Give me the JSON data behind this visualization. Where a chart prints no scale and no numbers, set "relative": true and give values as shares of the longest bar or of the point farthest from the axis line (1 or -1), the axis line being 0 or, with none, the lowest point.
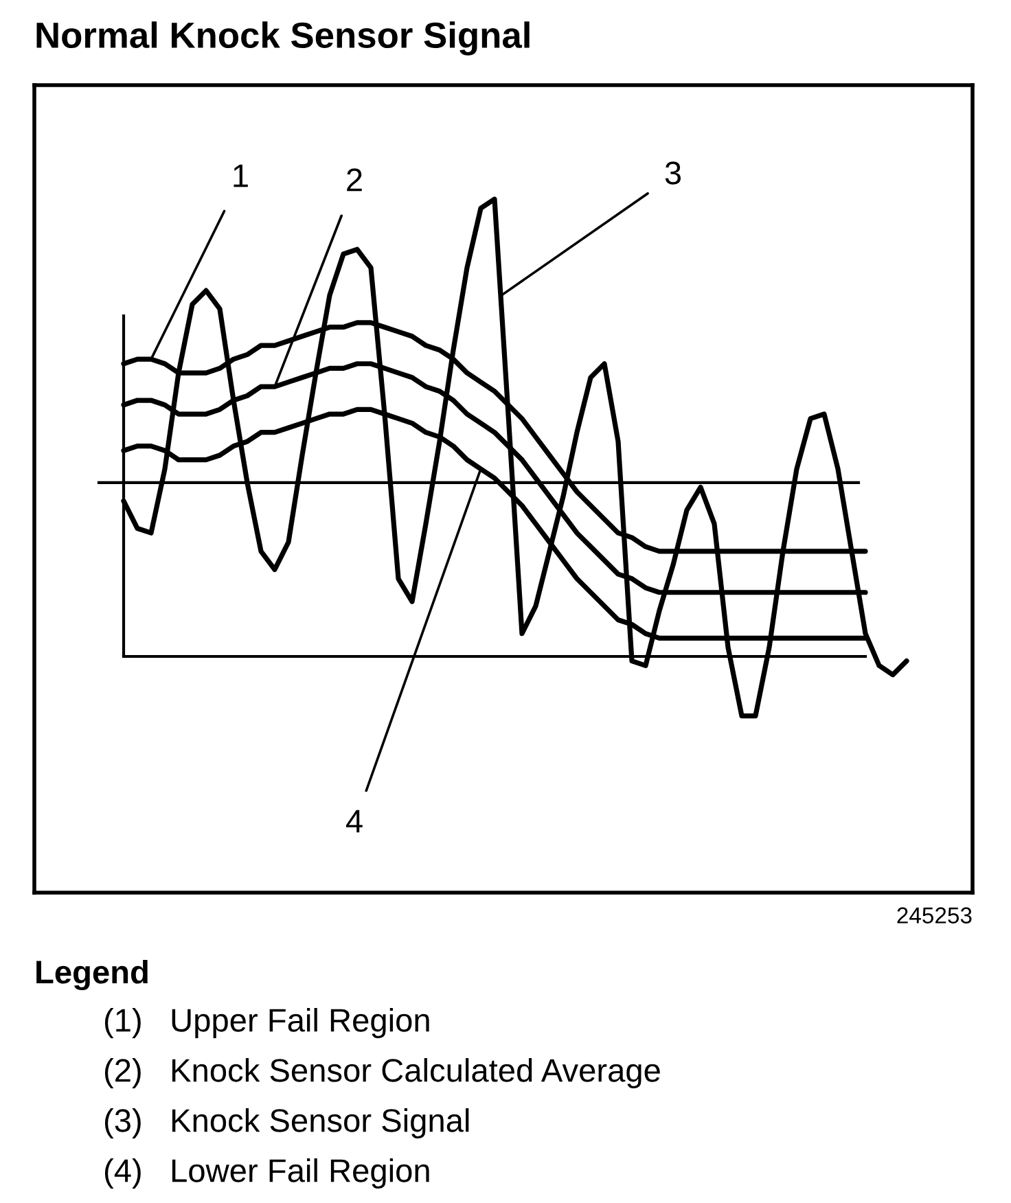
{
  "chart_data": {
    "type": "line",
    "relative": true,
    "title": "Normal Knock Sensor Signal",
    "categories": [
      null,
      null,
      null,
      null,
      null,
      null,
      null,
      null,
      null,
      null,
      null,
      null,
      null,
      null,
      null,
      null,
      null,
      null,
      null,
      null,
      null,
      null,
      null,
      null,
      null,
      null,
      null,
      null,
      null,
      null,
      null,
      null,
      null,
      null,
      null,
      null,
      null,
      null,
      null,
      null,
      null,
      null,
      null,
      null,
      null,
      null,
      null,
      null,
      null,
      null,
      null,
      null,
      null,
      null,
      null,
      null,
      null,
      null
    ],
    "series": [
      {
        "name": "1",
        "color": "#000000",
        "values": [
          0.64,
          0.65,
          0.65,
          0.64,
          0.62,
          0.62,
          0.62,
          0.63,
          0.65,
          0.66,
          0.68,
          0.68,
          0.69,
          0.7,
          0.71,
          0.72,
          0.72,
          0.73,
          0.73,
          0.72,
          0.71,
          0.7,
          0.68,
          0.67,
          0.65,
          0.62,
          0.6,
          0.58,
          0.55,
          0.52,
          0.48,
          0.44,
          0.4,
          0.36,
          0.33,
          0.3,
          0.27,
          0.26,
          0.24,
          0.23,
          0.23,
          0.23,
          0.23,
          0.23,
          0.23,
          0.23,
          0.23,
          0.23,
          0.23,
          0.23,
          0.23,
          0.23,
          0.23,
          0.23,
          0.23,
          null,
          null,
          null
        ]
      },
      {
        "name": "2",
        "color": "#000000",
        "values": [
          0.55,
          0.56,
          0.56,
          0.55,
          0.53,
          0.53,
          0.53,
          0.54,
          0.56,
          0.57,
          0.59,
          0.59,
          0.6,
          0.61,
          0.62,
          0.63,
          0.63,
          0.64,
          0.64,
          0.63,
          0.62,
          0.61,
          0.59,
          0.58,
          0.56,
          0.53,
          0.51,
          0.49,
          0.46,
          0.43,
          0.39,
          0.35,
          0.31,
          0.27,
          0.24,
          0.21,
          0.18,
          0.17,
          0.15,
          0.14,
          0.14,
          0.14,
          0.14,
          0.14,
          0.14,
          0.14,
          0.14,
          0.14,
          0.14,
          0.14,
          0.14,
          0.14,
          0.14,
          0.14,
          0.14,
          null,
          null,
          null
        ]
      },
      {
        "name": "3",
        "color": "#000000",
        "values": [
          0.34,
          0.28,
          0.27,
          0.41,
          0.62,
          0.77,
          0.8,
          0.76,
          0.56,
          0.38,
          0.23,
          0.19,
          0.25,
          0.44,
          0.62,
          0.79,
          0.88,
          0.89,
          0.85,
          0.53,
          0.17,
          0.12,
          0.29,
          0.47,
          0.67,
          0.85,
          0.98,
          1.0,
          0.53,
          0.05,
          0.11,
          0.23,
          0.35,
          0.49,
          0.61,
          0.64,
          0.47,
          -0.01,
          -0.02,
          0.1,
          0.2,
          0.32,
          0.37,
          0.29,
          0.02,
          -0.13,
          -0.13,
          0.02,
          0.23,
          0.41,
          0.52,
          0.53,
          0.41,
          0.23,
          0.05,
          -0.02,
          -0.04,
          -0.01
        ]
      },
      {
        "name": "4",
        "color": "#000000",
        "values": [
          0.45,
          0.46,
          0.46,
          0.45,
          0.43,
          0.43,
          0.43,
          0.44,
          0.46,
          0.47,
          0.49,
          0.49,
          0.5,
          0.51,
          0.52,
          0.53,
          0.53,
          0.54,
          0.54,
          0.53,
          0.52,
          0.51,
          0.49,
          0.48,
          0.46,
          0.43,
          0.41,
          0.39,
          0.36,
          0.33,
          0.29,
          0.25,
          0.21,
          0.17,
          0.14,
          0.11,
          0.08,
          0.07,
          0.05,
          0.04,
          0.04,
          0.04,
          0.04,
          0.04,
          0.04,
          0.04,
          0.04,
          0.04,
          0.04,
          0.04,
          0.04,
          0.04,
          0.04,
          0.04,
          0.04,
          null,
          null,
          null
        ]
      }
    ],
    "ref_lines": [
      {
        "axis": "y",
        "value": 0.38,
        "color": "#000000"
      }
    ],
    "annotations": [
      "245253",
      "Legend",
      "(1)   Upper Fail Region",
      "(2)   Knock Sensor Calculated Average",
      "(3)   Knock Sensor Signal",
      "(4)   Lower Fail Region"
    ],
    "legend": false,
    "grid": false
  }
}
